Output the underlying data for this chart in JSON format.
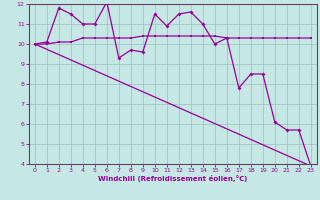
{
  "background_color": "#c5e8e5",
  "grid_color": "#9bbfbc",
  "line_color": "#990099",
  "spine_color": "#6a3d6a",
  "xlim": [
    -0.5,
    23.5
  ],
  "ylim": [
    4,
    12
  ],
  "xticks": [
    0,
    1,
    2,
    3,
    4,
    5,
    6,
    7,
    8,
    9,
    10,
    11,
    12,
    13,
    14,
    15,
    16,
    17,
    18,
    19,
    20,
    21,
    22,
    23
  ],
  "yticks": [
    4,
    5,
    6,
    7,
    8,
    9,
    10,
    11,
    12
  ],
  "xlabel": "Windchill (Refroidissement éolien,°C)",
  "series_flat_x": [
    0,
    1,
    2,
    3,
    4,
    5,
    6,
    7,
    8,
    9,
    10,
    11,
    12,
    13,
    14,
    15,
    16,
    17,
    18,
    19,
    20,
    21,
    22,
    23
  ],
  "series_flat_y": [
    10.0,
    10.0,
    10.1,
    10.1,
    10.3,
    10.3,
    10.3,
    10.3,
    10.3,
    10.4,
    10.4,
    10.4,
    10.4,
    10.4,
    10.4,
    10.4,
    10.3,
    10.3,
    10.3,
    10.3,
    10.3,
    10.3,
    10.3,
    10.3
  ],
  "series_zigzag_x": [
    0,
    1,
    2,
    3,
    4,
    5,
    6,
    7,
    8,
    9,
    10,
    11,
    12,
    13,
    14,
    15,
    16,
    17,
    18,
    19,
    20,
    21,
    22,
    23
  ],
  "series_zigzag_y": [
    10.0,
    10.1,
    11.8,
    11.5,
    11.0,
    11.0,
    12.1,
    9.3,
    9.7,
    9.6,
    11.5,
    10.9,
    11.5,
    11.6,
    11.0,
    10.0,
    10.3,
    7.8,
    8.5,
    8.5,
    6.1,
    5.7,
    5.7,
    3.9
  ],
  "series_line_x": [
    0,
    23
  ],
  "series_line_y": [
    10.0,
    3.9
  ]
}
